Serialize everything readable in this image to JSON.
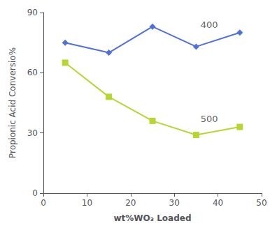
{
  "chart_data": {
    "type": "line",
    "xlabel": "wt%WO₃ Loaded",
    "ylabel": "Propionic Acid Conversio%",
    "x": [
      5,
      15,
      25,
      35,
      45
    ],
    "series": [
      {
        "marker": "diamond",
        "values": [
          75,
          70,
          83,
          73,
          80
        ]
      },
      {
        "marker": "square",
        "values": [
          65,
          48,
          36,
          29,
          33
        ]
      }
    ],
    "annotations": [
      {
        "text": "400",
        "x": 36,
        "y": 84
      },
      {
        "text": "500",
        "x": 36,
        "y": 37
      }
    ],
    "xlim": [
      0,
      50
    ],
    "ylim": [
      0,
      90
    ],
    "xticks": [
      0,
      10,
      20,
      30,
      40,
      50
    ],
    "yticks": [
      0,
      30,
      60,
      90
    ],
    "grid": false
  }
}
